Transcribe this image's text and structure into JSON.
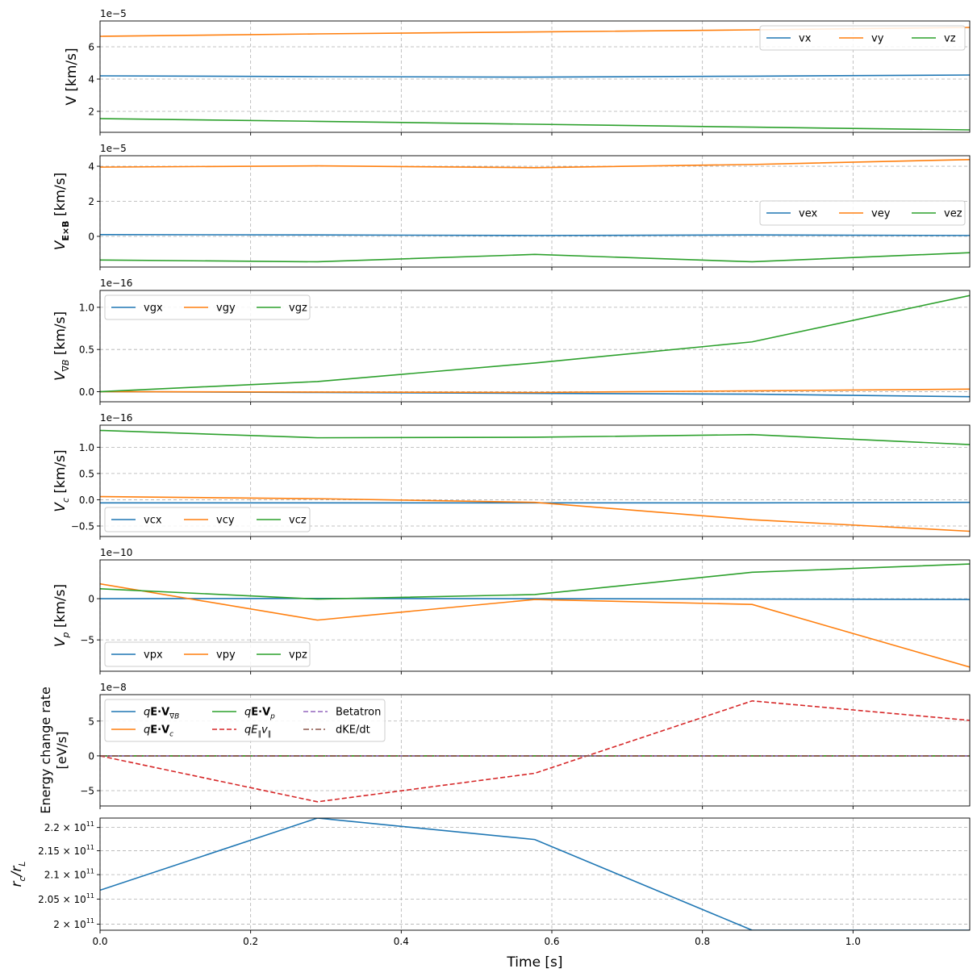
{
  "figure": {
    "xlabel": "Time [s]",
    "xlim": [
      0,
      1.155
    ],
    "xticks": [
      0.0,
      0.2,
      0.4,
      0.6,
      0.8,
      1.0
    ],
    "xtick_labels": [
      "0.0",
      "0.2",
      "0.4",
      "0.6",
      "0.8",
      "1.0"
    ]
  },
  "chart_data": [
    {
      "id": "v",
      "type": "line",
      "ylabel": "V [km/s]",
      "offset_text": "1e−5",
      "scale": 1e-05,
      "ylim": [
        0.7,
        7.6
      ],
      "yticks": [
        2,
        4,
        6
      ],
      "ytick_labels": [
        "2",
        "4",
        "6"
      ],
      "legend": {
        "loc": "top-right",
        "ncol": 3
      },
      "x": [
        0,
        0.2887,
        0.5774,
        0.866,
        1.155
      ],
      "series": [
        {
          "name": "vx",
          "color": "#1f77b4",
          "dash": "solid",
          "values": [
            4.2,
            4.15,
            4.12,
            4.18,
            4.25
          ]
        },
        {
          "name": "vy",
          "color": "#ff7f0e",
          "dash": "solid",
          "values": [
            6.65,
            6.8,
            6.92,
            7.05,
            7.2
          ]
        },
        {
          "name": "vz",
          "color": "#2ca02c",
          "dash": "solid",
          "values": [
            1.55,
            1.38,
            1.2,
            1.02,
            0.85
          ]
        }
      ]
    },
    {
      "id": "vexb",
      "type": "line",
      "ylabel": "V_E×B [km/s]",
      "ylabel_main": "V",
      "ylabel_sub": "E×B",
      "ylabel_unit": " [km/s]",
      "offset_text": "1e−5",
      "scale": 1e-05,
      "ylim": [
        -1.75,
        4.6
      ],
      "yticks": [
        0,
        2,
        4
      ],
      "ytick_labels": [
        "0",
        "2",
        "4"
      ],
      "legend": {
        "loc": "center-right",
        "ncol": 3
      },
      "x": [
        0,
        0.2887,
        0.5774,
        0.866,
        1.155
      ],
      "series": [
        {
          "name": "vex",
          "color": "#1f77b4",
          "dash": "solid",
          "values": [
            0.1,
            0.08,
            0.05,
            0.08,
            0.05
          ]
        },
        {
          "name": "vey",
          "color": "#ff7f0e",
          "dash": "solid",
          "values": [
            3.95,
            4.02,
            3.92,
            4.1,
            4.38
          ]
        },
        {
          "name": "vez",
          "color": "#2ca02c",
          "dash": "solid",
          "values": [
            -1.35,
            -1.45,
            -1.03,
            -1.45,
            -0.93
          ]
        }
      ]
    },
    {
      "id": "vgradb",
      "type": "line",
      "ylabel": "V_∇B [km/s]",
      "ylabel_main": "V",
      "ylabel_sub": "∇B",
      "ylabel_unit": " [km/s]",
      "offset_text": "1e−16",
      "scale": 1e-16,
      "ylim": [
        -0.12,
        1.2
      ],
      "yticks": [
        0.0,
        0.5,
        1.0
      ],
      "ytick_labels": [
        "0.0",
        "0.5",
        "1.0"
      ],
      "legend": {
        "loc": "top-left",
        "ncol": 3
      },
      "x": [
        0,
        0.2887,
        0.5774,
        0.866,
        1.155
      ],
      "series": [
        {
          "name": "vgx",
          "color": "#1f77b4",
          "dash": "solid",
          "values": [
            0.0,
            -0.01,
            -0.02,
            -0.03,
            -0.06
          ]
        },
        {
          "name": "vgy",
          "color": "#ff7f0e",
          "dash": "solid",
          "values": [
            0.0,
            -0.005,
            -0.01,
            0.01,
            0.03
          ]
        },
        {
          "name": "vgz",
          "color": "#2ca02c",
          "dash": "solid",
          "values": [
            0.0,
            0.12,
            0.34,
            0.59,
            1.14
          ]
        }
      ]
    },
    {
      "id": "vc",
      "type": "line",
      "ylabel": "V_c [km/s]",
      "ylabel_main": "V",
      "ylabel_sub": "c",
      "ylabel_unit": " [km/s]",
      "offset_text": "1e−16",
      "scale": 1e-16,
      "ylim": [
        -0.7,
        1.42
      ],
      "yticks": [
        -0.5,
        0.0,
        0.5,
        1.0
      ],
      "ytick_labels": [
        "−0.5",
        "0.0",
        "0.5",
        "1.0"
      ],
      "legend": {
        "loc": "bottom-left",
        "ncol": 3
      },
      "x": [
        0,
        0.2887,
        0.5774,
        0.866,
        1.155
      ],
      "series": [
        {
          "name": "vcx",
          "color": "#1f77b4",
          "dash": "solid",
          "values": [
            -0.06,
            -0.06,
            -0.06,
            -0.06,
            -0.05
          ]
        },
        {
          "name": "vcy",
          "color": "#ff7f0e",
          "dash": "solid",
          "values": [
            0.06,
            0.02,
            -0.05,
            -0.38,
            -0.6
          ]
        },
        {
          "name": "vcz",
          "color": "#2ca02c",
          "dash": "solid",
          "values": [
            1.32,
            1.18,
            1.19,
            1.24,
            1.05
          ]
        }
      ]
    },
    {
      "id": "vp",
      "type": "line",
      "ylabel": "V_p [km/s]",
      "ylabel_main": "V",
      "ylabel_sub": "p",
      "ylabel_unit": " [km/s]",
      "offset_text": "1e−10",
      "scale": 1e-10,
      "ylim": [
        -8.8,
        4.7
      ],
      "yticks": [
        -5,
        0
      ],
      "ytick_labels": [
        "−5",
        "0"
      ],
      "legend": {
        "loc": "bottom-left",
        "ncol": 3
      },
      "x": [
        0,
        0.2887,
        0.5774,
        0.866,
        1.155
      ],
      "series": [
        {
          "name": "vpx",
          "color": "#1f77b4",
          "dash": "solid",
          "values": [
            0.0,
            0.02,
            0.0,
            -0.05,
            -0.1
          ]
        },
        {
          "name": "vpy",
          "color": "#ff7f0e",
          "dash": "solid",
          "values": [
            1.8,
            -2.6,
            -0.1,
            -0.7,
            -8.3
          ]
        },
        {
          "name": "vpz",
          "color": "#2ca02c",
          "dash": "solid",
          "values": [
            1.2,
            -0.05,
            0.5,
            3.2,
            4.2
          ]
        }
      ]
    },
    {
      "id": "energy",
      "type": "line",
      "ylabel": "Energy change rate [eV/s]",
      "ylabel_line1": "Energy change rate",
      "ylabel_line2": "[eV/s]",
      "offset_text": "1e−8",
      "scale": 1e-08,
      "ylim": [
        -7.2,
        8.8
      ],
      "yticks": [
        -5,
        0,
        5
      ],
      "ytick_labels": [
        "−5",
        "0",
        "5"
      ],
      "legend": {
        "loc": "top-left",
        "ncol": 3
      },
      "x": [
        0,
        0.2887,
        0.5774,
        0.866,
        1.155
      ],
      "series": [
        {
          "name": "qE·V∇B",
          "label_main": "q",
          "label_bold": "E·V",
          "label_sub": "∇B",
          "color": "#1f77b4",
          "dash": "solid",
          "values": [
            0,
            0,
            0,
            0,
            0
          ]
        },
        {
          "name": "qE·Vc",
          "label_main": "q",
          "label_bold": "E·V",
          "label_sub": "c",
          "color": "#ff7f0e",
          "dash": "solid",
          "values": [
            0,
            0,
            0,
            0,
            0
          ]
        },
        {
          "name": "qE·Vp",
          "label_main": "q",
          "label_bold": "E·V",
          "label_sub": "p",
          "color": "#2ca02c",
          "dash": "solid",
          "values": [
            0,
            0,
            0,
            0,
            0
          ]
        },
        {
          "name": "qE∥v∥",
          "label_main": "qE",
          "label_bold": "",
          "label_sub": "∥",
          "label_tail": "v",
          "label_tail_sub": "∥",
          "color": "#d62728",
          "dash": "dashed",
          "values": [
            0,
            -6.6,
            -2.5,
            7.9,
            5.1
          ]
        },
        {
          "name": "Betatron",
          "color": "#9467bd",
          "dash": "dashed",
          "values": [
            0,
            0,
            0,
            0,
            0
          ]
        },
        {
          "name": "dKE/dt",
          "color": "#8c564b",
          "dash": "dashdot",
          "values": [
            0,
            0,
            0,
            0,
            0
          ]
        }
      ]
    },
    {
      "id": "rc_rl",
      "type": "line",
      "ylabel": "r_c/r_L",
      "ylabel_main": "r",
      "ylabel_sub": "c",
      "ylabel_mid": "/r",
      "ylabel_sub2": "L",
      "yscale": "log",
      "ylim": [
        198800000000.0,
        222050000000.0
      ],
      "yticks": [
        200000000000.0,
        205000000000.0,
        210000000000.0,
        215000000000.0,
        220000000000.0
      ],
      "ytick_labels": [
        {
          "mant": "2",
          "pre": "",
          "exp": "11"
        },
        {
          "mant": "2.05",
          "pre": "×",
          "exp": "11"
        },
        {
          "mant": "2.1",
          "pre": "×",
          "exp": "11"
        },
        {
          "mant": "2.15",
          "pre": "×",
          "exp": "11"
        },
        {
          "mant": "2.2",
          "pre": "×",
          "exp": "11"
        }
      ],
      "legend": null,
      "x": [
        0,
        0.2887,
        0.5774,
        0.866,
        1.155
      ],
      "series": [
        {
          "name": "rc/rL",
          "color": "#1f77b4",
          "dash": "solid",
          "values": [
            206800000000.0,
            222050000000.0,
            217400000000.0,
            198800000000.0,
            198800000000.0
          ]
        }
      ]
    }
  ]
}
